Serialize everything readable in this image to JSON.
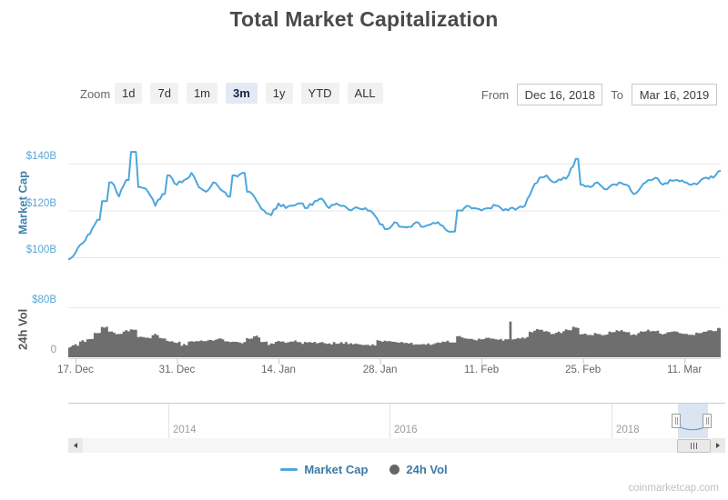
{
  "title": "Total Market Capitalization",
  "toolbar": {
    "zoom_label": "Zoom",
    "range_buttons": [
      {
        "label": "1d",
        "selected": false
      },
      {
        "label": "7d",
        "selected": false
      },
      {
        "label": "1m",
        "selected": false
      },
      {
        "label": "3m",
        "selected": true
      },
      {
        "label": "1y",
        "selected": false
      },
      {
        "label": "YTD",
        "selected": false
      },
      {
        "label": "ALL",
        "selected": false
      }
    ],
    "from_label": "From",
    "from_value": "Dec 16, 2018",
    "to_label": "To",
    "to_value": "Mar 16, 2019"
  },
  "chart_data": {
    "type": "line",
    "title": "Total Market Capitalization",
    "start_date": "Dec 16, 2018",
    "end_date": "Mar 16, 2019",
    "interval": "daily",
    "grid": "horizontal-only",
    "x_tick_labels": [
      "17. Dec",
      "31. Dec",
      "14. Jan",
      "28. Jan",
      "11. Feb",
      "25. Feb",
      "11. Mar"
    ],
    "x_tick_days": [
      1,
      15,
      29,
      43,
      57,
      71,
      85
    ],
    "panes": [
      {
        "name": "market-cap",
        "ylabel": "Market Cap",
        "units": "USD billions",
        "yticks": [
          100,
          120,
          140
        ],
        "ytick_labels": [
          "$100B",
          "$120B",
          "$140B"
        ],
        "ylim": [
          95,
          152
        ]
      },
      {
        "name": "24h-vol",
        "ylabel": "24h Vol",
        "units": "USD billions",
        "yticks": [
          0,
          80
        ],
        "ytick_labels": [
          "0",
          "$80B"
        ],
        "ylim": [
          0,
          80
        ]
      }
    ],
    "series": [
      {
        "name": "Market Cap",
        "type": "line",
        "pane": 0,
        "color": "#4da6dd",
        "values_billions": [
          99,
          102,
          106,
          110,
          116,
          124,
          132,
          126,
          133,
          145,
          130,
          128,
          122,
          127,
          135,
          131,
          133,
          136,
          130,
          128,
          132,
          129,
          126,
          135,
          136,
          128,
          124,
          120,
          118,
          123,
          121,
          122,
          123,
          121,
          124,
          125,
          121,
          123,
          122,
          120,
          121,
          121,
          119,
          114,
          112,
          115,
          113,
          113,
          115,
          113,
          114,
          115,
          112,
          111,
          120,
          122,
          121,
          120,
          121,
          122,
          120,
          121,
          121,
          122,
          129,
          134,
          135,
          132,
          133,
          135,
          142,
          131,
          130,
          132,
          129,
          131,
          132,
          131,
          127,
          130,
          133,
          134,
          131,
          133,
          133,
          132,
          131,
          132,
          134,
          134,
          137
        ]
      },
      {
        "name": "24h Vol",
        "type": "column",
        "pane": 1,
        "color": "#6e6e6e",
        "values_billions": [
          17,
          20,
          26,
          30,
          38,
          48,
          40,
          36,
          42,
          45,
          33,
          30,
          36,
          31,
          26,
          24,
          20,
          24,
          27,
          26,
          27,
          29,
          26,
          26,
          24,
          30,
          33,
          24,
          21,
          26,
          24,
          26,
          23,
          24,
          23,
          24,
          21,
          23,
          23,
          21,
          21,
          20,
          20,
          26,
          26,
          24,
          24,
          23,
          21,
          20,
          21,
          24,
          26,
          23,
          33,
          29,
          28,
          29,
          30,
          29,
          28,
          57,
          30,
          31,
          41,
          45,
          41,
          38,
          40,
          44,
          48,
          38,
          36,
          38,
          36,
          40,
          42,
          40,
          36,
          40,
          43,
          41,
          38,
          41,
          40,
          38,
          36,
          40,
          42,
          43,
          46
        ]
      }
    ],
    "legend_position": "bottom-center"
  },
  "navigator": {
    "year_labels": [
      "2014",
      "2016",
      "2018"
    ],
    "selection_from": "Dec 16, 2018",
    "selection_to": "Mar 16, 2019"
  },
  "legend": [
    {
      "label": "Market Cap",
      "marker": "line",
      "color": "#4da6dd"
    },
    {
      "label": "24h Vol",
      "marker": "circle",
      "color": "#666666"
    }
  ],
  "watermark": "coinmarketcap.com",
  "colors": {
    "line_blue": "#4da6dd",
    "axis_label_blue": "#57a7d4",
    "yaxis_title_blue": "#4285ad",
    "volume_gray": "#6e6e6e",
    "legend_text": "#3b7aa5",
    "grid": "#e7e7e7",
    "selected_button_bg": "#e4e9f6",
    "selected_button_text": "#16233f"
  }
}
